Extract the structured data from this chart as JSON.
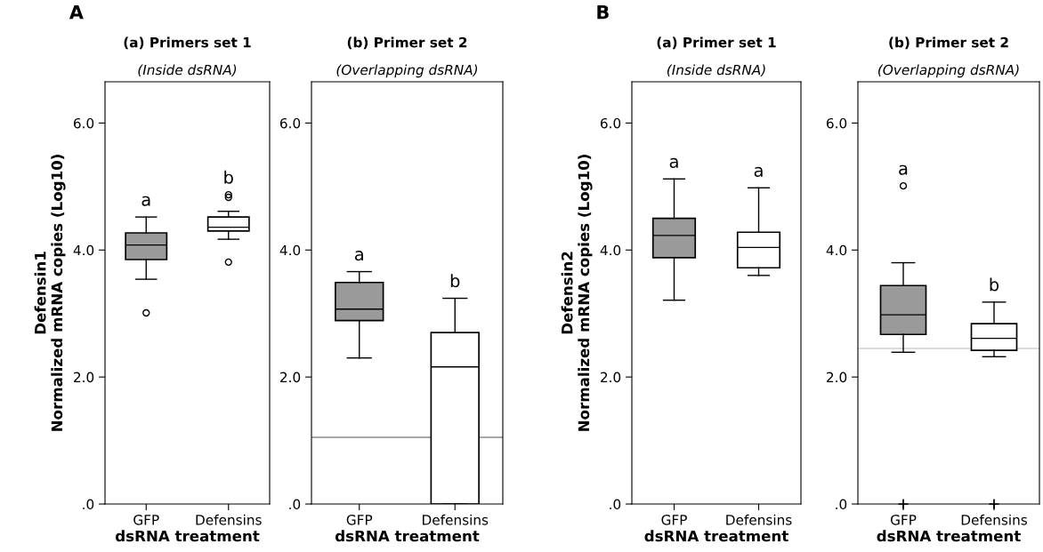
{
  "chart_data": [
    {
      "type": "box",
      "title": "(a) Primers set 1",
      "subtitle": "(Inside dsRNA)",
      "ylabel": "Defensin1\nNormalized mRNA copies (Log10)",
      "xlabel": "dsRNA treatment",
      "categories": [
        "GFP",
        "Defensins"
      ],
      "colors": [
        "#9a9a9a",
        "#ffffff"
      ],
      "boxes": [
        {
          "low": 3.54,
          "q1": 3.85,
          "median": 4.08,
          "q3": 4.27,
          "high": 4.52,
          "outliers": [
            3.01
          ]
        },
        {
          "low": 4.17,
          "q1": 4.3,
          "median": 4.36,
          "q3": 4.52,
          "high": 4.61,
          "outliers": [
            4.83,
            4.87,
            3.81
          ]
        }
      ],
      "ylim": [
        0,
        6.65
      ],
      "yticks": [
        {
          "value": 0,
          "label": ".0"
        },
        {
          "value": 2,
          "label": "2.0"
        },
        {
          "value": 4,
          "label": "4.0"
        },
        {
          "value": 6,
          "label": "6.0"
        }
      ],
      "annotations": [
        "A",
        "a",
        "b"
      ]
    },
    {
      "type": "box",
      "title": "(b) Primer set 2",
      "subtitle": "(Overlapping dsRNA)",
      "xlabel": "dsRNA treatment",
      "categories": [
        "GFP",
        "Defensins"
      ],
      "colors": [
        "#9a9a9a",
        "#ffffff"
      ],
      "boxes": [
        {
          "low": 2.3,
          "q1": 2.89,
          "median": 3.07,
          "q3": 3.49,
          "high": 3.66
        },
        {
          "low": 0,
          "q1": 0,
          "median": 2.16,
          "q3": 2.7,
          "high": 3.24
        }
      ],
      "ylim": [
        0,
        6.65
      ],
      "yticks": [
        {
          "value": 0,
          "label": ".0"
        },
        {
          "value": 2,
          "label": "2.0"
        },
        {
          "value": 4,
          "label": "4.0"
        },
        {
          "value": 6,
          "label": "6.0"
        }
      ],
      "ref_lines": [
        {
          "axis": "y",
          "value": 1.05,
          "color": "#888888"
        }
      ],
      "annotations": [
        "a",
        "b"
      ]
    },
    {
      "type": "box",
      "title": "(a) Primer set 1",
      "subtitle": "(Inside dsRNA)",
      "ylabel": "Defensin2\nNormalized mRNA copies (Log10)",
      "xlabel": "dsRNA treatment",
      "categories": [
        "GFP",
        "Defensins"
      ],
      "colors": [
        "#9a9a9a",
        "#ffffff"
      ],
      "boxes": [
        {
          "low": 3.21,
          "q1": 3.88,
          "median": 4.23,
          "q3": 4.5,
          "high": 5.12
        },
        {
          "low": 3.6,
          "q1": 3.72,
          "median": 4.04,
          "q3": 4.28,
          "high": 4.98
        }
      ],
      "ylim": [
        0,
        6.65
      ],
      "yticks": [
        {
          "value": 0,
          "label": ".0"
        },
        {
          "value": 2,
          "label": "2.0"
        },
        {
          "value": 4,
          "label": "4.0"
        },
        {
          "value": 6,
          "label": "6.0"
        }
      ],
      "annotations": [
        "B",
        "a",
        "a"
      ]
    },
    {
      "type": "box",
      "title": "(b) Primer set 2",
      "subtitle": "(Overlapping dsRNA)",
      "xlabel": "dsRNA treatment",
      "categories": [
        "GFP",
        "Defensins"
      ],
      "colors": [
        "#9a9a9a",
        "#ffffff"
      ],
      "boxes": [
        {
          "low": 2.39,
          "q1": 2.67,
          "median": 2.98,
          "q3": 3.44,
          "high": 3.8,
          "outliers": [
            5.01
          ]
        },
        {
          "low": 2.32,
          "q1": 2.42,
          "median": 2.61,
          "q3": 2.84,
          "high": 3.18
        }
      ],
      "series": [
        {
          "type": "scatter",
          "marker": "cross",
          "color": "#000000",
          "x": [
            "GFP",
            "Defensins"
          ],
          "values": [
            0,
            0
          ]
        }
      ],
      "ylim": [
        0,
        6.65
      ],
      "yticks": [
        {
          "value": 0,
          "label": ".0"
        },
        {
          "value": 2,
          "label": "2.0"
        },
        {
          "value": 4,
          "label": "4.0"
        },
        {
          "value": 6,
          "label": "6.0"
        }
      ],
      "ref_lines": [
        {
          "axis": "y",
          "value": 2.45,
          "color": "#d0d0d0"
        }
      ],
      "annotations": [
        "a",
        "b"
      ]
    }
  ]
}
